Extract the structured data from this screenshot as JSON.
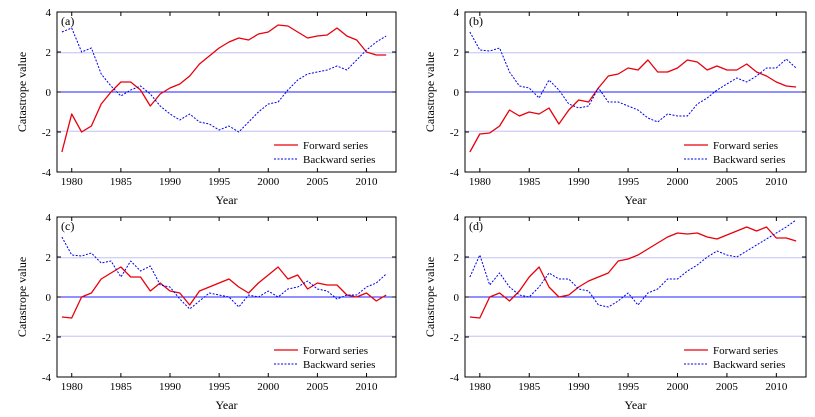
{
  "chart_data": [
    {
      "type": "line",
      "panel_label": "(a)",
      "xlabel": "Year",
      "ylabel": "Catastrope value",
      "xlim": [
        1978.5,
        2013
      ],
      "ylim": [
        -4,
        4
      ],
      "xticks": [
        1980,
        1985,
        1990,
        1995,
        2000,
        2005,
        2010
      ],
      "yticks": [
        -4,
        -2,
        0,
        2,
        4
      ],
      "reference_lines": [
        -1.96,
        0,
        1.96
      ],
      "legend_position": "bottom-right",
      "x": [
        1979,
        1980,
        1981,
        1982,
        1983,
        1984,
        1985,
        1986,
        1987,
        1988,
        1989,
        1990,
        1991,
        1992,
        1993,
        1994,
        1995,
        1996,
        1997,
        1998,
        1999,
        2000,
        2001,
        2002,
        2003,
        2004,
        2005,
        2006,
        2007,
        2008,
        2009,
        2010,
        2011,
        2012
      ],
      "series": [
        {
          "name": "Forward series",
          "color": "#e8000b",
          "style": "solid",
          "values": [
            -3.0,
            -1.1,
            -2.0,
            -1.7,
            -0.6,
            0.0,
            0.5,
            0.5,
            0.1,
            -0.7,
            -0.1,
            0.2,
            0.4,
            0.8,
            1.4,
            1.8,
            2.2,
            2.5,
            2.7,
            2.6,
            2.9,
            3.0,
            3.35,
            3.3,
            3.0,
            2.7,
            2.8,
            2.85,
            3.2,
            2.8,
            2.6,
            2.0,
            1.85,
            1.85
          ]
        },
        {
          "name": "Backward series",
          "color": "#0000ee",
          "style": "dashed",
          "values": [
            3.0,
            3.2,
            2.0,
            2.2,
            0.9,
            0.3,
            -0.2,
            0.1,
            0.3,
            -0.1,
            -0.7,
            -1.1,
            -1.4,
            -1.1,
            -1.5,
            -1.6,
            -1.9,
            -1.7,
            -2.0,
            -1.5,
            -1.0,
            -0.6,
            -0.5,
            0.1,
            0.6,
            0.9,
            1.0,
            1.1,
            1.3,
            1.1,
            1.6,
            2.1,
            2.5,
            2.8
          ]
        }
      ]
    },
    {
      "type": "line",
      "panel_label": "(b)",
      "xlabel": "Year",
      "ylabel": "Catastrope value",
      "xlim": [
        1978.5,
        2013
      ],
      "ylim": [
        -4,
        4
      ],
      "xticks": [
        1980,
        1985,
        1990,
        1995,
        2000,
        2005,
        2010
      ],
      "yticks": [
        -4,
        -2,
        0,
        2,
        4
      ],
      "reference_lines": [
        -1.96,
        0,
        1.96
      ],
      "legend_position": "bottom-right",
      "x": [
        1979,
        1980,
        1981,
        1982,
        1983,
        1984,
        1985,
        1986,
        1987,
        1988,
        1989,
        1990,
        1991,
        1992,
        1993,
        1994,
        1995,
        1996,
        1997,
        1998,
        1999,
        2000,
        2001,
        2002,
        2003,
        2004,
        2005,
        2006,
        2007,
        2008,
        2009,
        2010,
        2011,
        2012
      ],
      "series": [
        {
          "name": "Forward series",
          "color": "#e8000b",
          "style": "solid",
          "values": [
            -3.0,
            -2.1,
            -2.05,
            -1.7,
            -0.9,
            -1.2,
            -1.0,
            -1.1,
            -0.8,
            -1.6,
            -0.9,
            -0.4,
            -0.5,
            0.2,
            0.8,
            0.9,
            1.2,
            1.1,
            1.6,
            1.0,
            1.0,
            1.2,
            1.6,
            1.5,
            1.1,
            1.3,
            1.1,
            1.1,
            1.4,
            1.0,
            0.8,
            0.5,
            0.3,
            0.25
          ]
        },
        {
          "name": "Backward series",
          "color": "#0000ee",
          "style": "dashed",
          "values": [
            3.0,
            2.1,
            2.05,
            2.2,
            1.0,
            0.3,
            0.2,
            -0.3,
            0.6,
            0.1,
            -0.6,
            -0.8,
            -0.7,
            0.2,
            -0.5,
            -0.5,
            -0.7,
            -0.9,
            -1.3,
            -1.5,
            -1.1,
            -1.2,
            -1.2,
            -0.6,
            -0.3,
            0.1,
            0.4,
            0.7,
            0.5,
            0.8,
            1.2,
            1.2,
            1.65,
            1.2
          ]
        }
      ]
    },
    {
      "type": "line",
      "panel_label": "(c)",
      "xlabel": "Year",
      "ylabel": "Catastrope value",
      "xlim": [
        1978.5,
        2013
      ],
      "ylim": [
        -4,
        4
      ],
      "xticks": [
        1980,
        1985,
        1990,
        1995,
        2000,
        2005,
        2010
      ],
      "yticks": [
        -4,
        -2,
        0,
        2,
        4
      ],
      "reference_lines": [
        -1.96,
        0,
        1.96
      ],
      "legend_position": "bottom-right",
      "x": [
        1979,
        1980,
        1981,
        1982,
        1983,
        1984,
        1985,
        1986,
        1987,
        1988,
        1989,
        1990,
        1991,
        1992,
        1993,
        1994,
        1995,
        1996,
        1997,
        1998,
        1999,
        2000,
        2001,
        2002,
        2003,
        2004,
        2005,
        2006,
        2007,
        2008,
        2009,
        2010,
        2011,
        2012
      ],
      "series": [
        {
          "name": "Forward series",
          "color": "#e8000b",
          "style": "solid",
          "values": [
            -1.0,
            -1.05,
            0.0,
            0.2,
            0.9,
            1.2,
            1.5,
            1.0,
            1.0,
            0.3,
            0.7,
            0.3,
            0.2,
            -0.4,
            0.3,
            0.5,
            0.7,
            0.9,
            0.5,
            0.2,
            0.7,
            1.1,
            1.5,
            0.9,
            1.1,
            0.4,
            0.7,
            0.6,
            0.6,
            0.1,
            0.0,
            0.2,
            -0.2,
            0.1
          ]
        },
        {
          "name": "Backward series",
          "color": "#0000ee",
          "style": "dashed",
          "values": [
            3.0,
            2.1,
            2.05,
            2.2,
            1.7,
            1.8,
            1.0,
            1.8,
            1.3,
            1.55,
            0.6,
            0.5,
            -0.1,
            -0.6,
            -0.2,
            0.2,
            0.1,
            0.0,
            -0.5,
            0.1,
            0.0,
            0.3,
            0.0,
            0.4,
            0.5,
            0.8,
            0.4,
            0.3,
            -0.1,
            0.1,
            0.1,
            0.5,
            0.7,
            1.15
          ]
        }
      ]
    },
    {
      "type": "line",
      "panel_label": "(d)",
      "xlabel": "Year",
      "ylabel": "Catastrope value",
      "xlim": [
        1978.5,
        2013
      ],
      "ylim": [
        -4,
        4
      ],
      "xticks": [
        1980,
        1985,
        1990,
        1995,
        2000,
        2005,
        2010
      ],
      "yticks": [
        -4,
        -2,
        0,
        2,
        4
      ],
      "reference_lines": [
        -1.96,
        0,
        1.96
      ],
      "legend_position": "bottom-right",
      "x": [
        1979,
        1980,
        1981,
        1982,
        1983,
        1984,
        1985,
        1986,
        1987,
        1988,
        1989,
        1990,
        1991,
        1992,
        1993,
        1994,
        1995,
        1996,
        1997,
        1998,
        1999,
        2000,
        2001,
        2002,
        2003,
        2004,
        2005,
        2006,
        2007,
        2008,
        2009,
        2010,
        2011,
        2012
      ],
      "series": [
        {
          "name": "Forward series",
          "color": "#e8000b",
          "style": "solid",
          "values": [
            -1.0,
            -1.05,
            0.0,
            0.2,
            -0.2,
            0.3,
            1.0,
            1.5,
            0.5,
            0.0,
            0.1,
            0.5,
            0.8,
            1.0,
            1.2,
            1.8,
            1.9,
            2.1,
            2.4,
            2.7,
            3.0,
            3.2,
            3.15,
            3.2,
            3.0,
            2.9,
            3.1,
            3.3,
            3.5,
            3.3,
            3.5,
            2.95,
            2.95,
            2.8
          ]
        },
        {
          "name": "Backward series",
          "color": "#0000ee",
          "style": "dashed",
          "values": [
            1.0,
            2.1,
            0.6,
            1.2,
            0.5,
            0.1,
            0.0,
            0.5,
            1.2,
            0.9,
            0.9,
            0.4,
            0.3,
            -0.4,
            -0.5,
            -0.2,
            0.2,
            -0.4,
            0.2,
            0.4,
            0.9,
            0.9,
            1.3,
            1.6,
            2.0,
            2.3,
            2.1,
            2.0,
            2.3,
            2.6,
            2.9,
            3.2,
            3.5,
            3.85
          ]
        }
      ]
    }
  ]
}
